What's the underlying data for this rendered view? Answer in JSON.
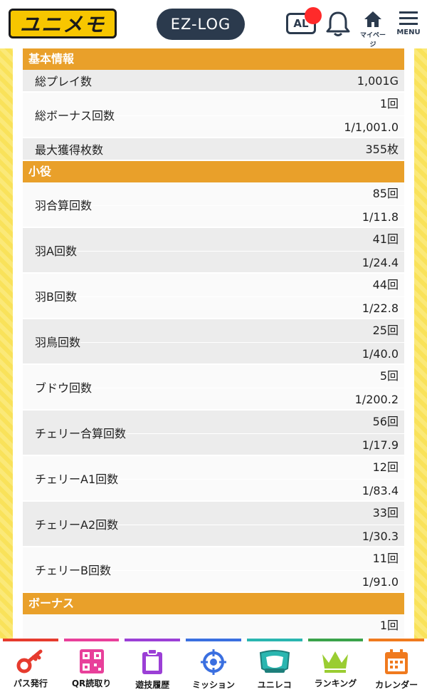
{
  "header": {
    "logo_text": "ユニメモ",
    "ezlog_label": "EZ-LOG",
    "al_label": "AL",
    "mypage_label": "マイページ",
    "menu_label": "MENU"
  },
  "sections": {
    "basic": "基本情報",
    "small": "小役",
    "bonus": "ボーナス"
  },
  "basic_rows": {
    "total_play": {
      "label": "総プレイ数",
      "value": "1,001G"
    },
    "total_bonus": {
      "label": "総ボーナス回数",
      "count": "1回",
      "rate": "1/1,001.0"
    },
    "max_coins": {
      "label": "最大獲得枚数",
      "value": "355枚"
    }
  },
  "small_rows": [
    {
      "label": "羽合算回数",
      "count": "85回",
      "rate": "1/11.8"
    },
    {
      "label": "羽A回数",
      "count": "41回",
      "rate": "1/24.4"
    },
    {
      "label": "羽B回数",
      "count": "44回",
      "rate": "1/22.8"
    },
    {
      "label": "羽鳥回数",
      "count": "25回",
      "rate": "1/40.0"
    },
    {
      "label": "ブドウ回数",
      "count": "5回",
      "rate": "1/200.2"
    },
    {
      "label": "チェリー合算回数",
      "count": "56回",
      "rate": "1/17.9"
    },
    {
      "label": "チェリーA1回数",
      "count": "12回",
      "rate": "1/83.4"
    },
    {
      "label": "チェリーA2回数",
      "count": "33回",
      "rate": "1/30.3"
    },
    {
      "label": "チェリーB回数",
      "count": "11回",
      "rate": "1/91.0"
    }
  ],
  "bonus_partial_value": "1回",
  "bottom_nav": [
    {
      "label": "パス発行",
      "color": "#e63b2e",
      "icon": "key-icon"
    },
    {
      "label": "QR読取り",
      "color": "#e8409a",
      "icon": "qr-icon"
    },
    {
      "label": "遊技履歴",
      "color": "#9b3fd6",
      "icon": "clipboard-icon"
    },
    {
      "label": "ミッション",
      "color": "#3a6fe0",
      "icon": "target-icon"
    },
    {
      "label": "ユニレコ",
      "color": "#2ab6b0",
      "icon": "unireco-icon"
    },
    {
      "label": "ランキング",
      "color": "#3aa34a",
      "icon": "crown-icon"
    },
    {
      "label": "カレンダー",
      "color": "#f07a1e",
      "icon": "calendar-icon"
    }
  ]
}
